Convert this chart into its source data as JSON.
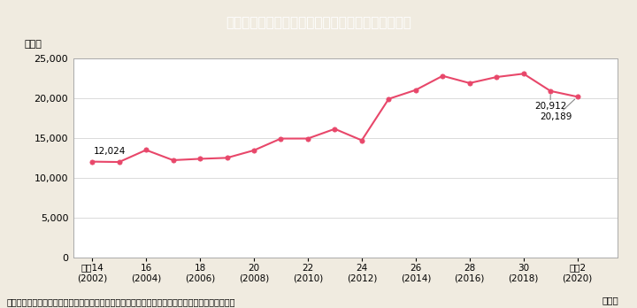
{
  "title": "Ｉ－７－７図　ストーカー事案の相談等件数の推移",
  "title_bg_color": "#2ab4cc",
  "title_text_color": "#ffffff",
  "background_color": "#f0ebe0",
  "plot_bg_color": "#ffffff",
  "line_color": "#e8476a",
  "marker_color": "#e8476a",
  "years": [
    2002,
    2003,
    2004,
    2005,
    2006,
    2007,
    2008,
    2009,
    2010,
    2011,
    2012,
    2013,
    2014,
    2015,
    2016,
    2017,
    2018,
    2019,
    2020
  ],
  "values": [
    12024,
    11975,
    13488,
    12209,
    12377,
    12500,
    13445,
    14927,
    14930,
    16141,
    14706,
    19920,
    21038,
    22816,
    21908,
    22670,
    23086,
    20912,
    20189
  ],
  "x_tick_positions": [
    2002,
    2004,
    2006,
    2008,
    2010,
    2012,
    2014,
    2016,
    2018,
    2020
  ],
  "x_tick_labels": [
    "平成14\n(2002)",
    "16\n(2004)",
    "18\n(2006)",
    "20\n(2008)",
    "22\n(2010)",
    "24\n(2012)",
    "26\n(2014)",
    "28\n(2016)",
    "30\n(2018)",
    "令和2\n(2020)"
  ],
  "year_unit_label": "（年）",
  "ylabel_unit": "（件）",
  "ylim": [
    0,
    25000
  ],
  "yticks": [
    0,
    5000,
    10000,
    15000,
    20000,
    25000
  ],
  "xlim_left": 2001.3,
  "xlim_right": 2021.5,
  "ann_first_year": 2002,
  "ann_first_val": 12024,
  "ann_first_text": "12,024",
  "ann_last1_year": 2019,
  "ann_last1_val": 20912,
  "ann_last1_text": "20,912",
  "ann_last2_year": 2020,
  "ann_last2_val": 20189,
  "ann_last2_text": "20,189",
  "footnote": "（備考）警察庁「ストーカー事案及び配偶者からの暴力事案等への対応状況について」より作成。"
}
